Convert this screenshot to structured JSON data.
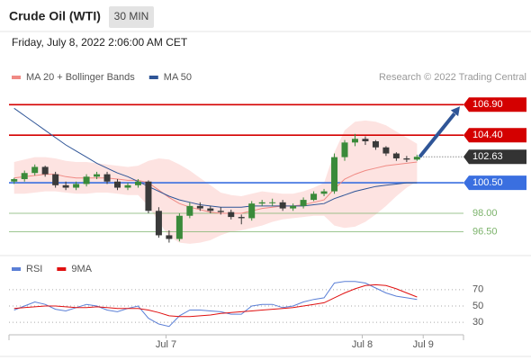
{
  "header": {
    "title": "Crude Oil (WTI)",
    "timeframe": "30 MIN",
    "date": "Friday, July 8, 2022 2:06:00 AM CET",
    "credit": "Research © 2022 Trading Central"
  },
  "chart_data": [
    {
      "type": "candlestick",
      "up_color": "#3a8a3a",
      "down_color": "#3a3a3a",
      "xlim": [
        -0.5,
        43.5
      ],
      "ylim": [
        95.2,
        108.1
      ],
      "open": [
        100.6,
        100.8,
        101.3,
        101.8,
        101.2,
        100.3,
        100.1,
        100.4,
        101.0,
        101.2,
        100.6,
        100.1,
        100.3,
        100.6,
        98.2,
        96.2,
        95.9,
        97.8,
        98.6,
        98.4,
        98.2,
        98.1,
        97.7,
        97.6,
        98.8,
        98.9,
        98.9,
        98.4,
        98.6,
        99.1,
        99.6,
        99.8,
        102.6,
        103.8,
        104.1,
        103.9,
        103.4,
        102.9,
        102.5,
        102.4
      ],
      "high": [
        100.9,
        101.5,
        102.0,
        101.9,
        101.4,
        100.6,
        100.6,
        101.2,
        101.4,
        101.4,
        100.8,
        100.5,
        100.8,
        100.7,
        98.5,
        96.6,
        98.0,
        98.9,
        98.9,
        98.6,
        98.5,
        98.3,
        97.9,
        99.0,
        99.1,
        99.2,
        99.1,
        98.8,
        99.3,
        99.8,
        100.0,
        102.9,
        104.0,
        104.5,
        104.3,
        104.0,
        103.5,
        103.0,
        102.7,
        102.8
      ],
      "low": [
        100.4,
        100.6,
        101.1,
        101.0,
        100.1,
        99.9,
        99.9,
        100.2,
        100.8,
        100.4,
        99.9,
        99.9,
        100.1,
        98.0,
        96.0,
        95.6,
        95.7,
        97.6,
        98.2,
        98.0,
        97.9,
        97.5,
        97.1,
        97.4,
        98.6,
        98.6,
        98.2,
        98.2,
        98.4,
        99.0,
        99.4,
        99.6,
        102.3,
        103.5,
        103.6,
        103.2,
        102.7,
        102.3,
        102.2,
        102.3
      ],
      "close": [
        100.8,
        101.3,
        101.8,
        101.2,
        100.3,
        100.1,
        100.4,
        101.0,
        101.2,
        100.6,
        100.1,
        100.3,
        100.6,
        98.2,
        96.2,
        95.9,
        97.8,
        98.6,
        98.4,
        98.2,
        98.1,
        97.7,
        97.6,
        98.8,
        98.9,
        98.9,
        98.4,
        98.6,
        99.1,
        99.6,
        99.8,
        102.6,
        103.8,
        104.1,
        103.9,
        103.4,
        102.9,
        102.5,
        102.4,
        102.63
      ],
      "bands": {
        "name": "MA 20 + Bollinger Bands",
        "color": "#f08a84",
        "fill": "#fde3e1",
        "upper": [
          102.2,
          102.4,
          102.6,
          102.6,
          102.5,
          102.3,
          102.2,
          102.2,
          102.1,
          102.0,
          101.9,
          101.8,
          101.9,
          102.3,
          102.5,
          102.4,
          102.0,
          101.5,
          100.9,
          100.3,
          99.7,
          99.5,
          99.4,
          99.6,
          99.8,
          99.7,
          99.6,
          99.6,
          99.8,
          100.1,
          100.5,
          103.0,
          104.8,
          105.5,
          105.6,
          105.5,
          105.2,
          104.7,
          104.2,
          103.7
        ],
        "middle": [
          100.9,
          101.0,
          101.1,
          101.2,
          101.2,
          101.0,
          100.9,
          100.9,
          100.9,
          100.9,
          100.8,
          100.7,
          100.7,
          100.5,
          99.9,
          99.3,
          98.8,
          98.5,
          98.3,
          98.1,
          98.0,
          98.0,
          98.0,
          98.2,
          98.4,
          98.5,
          98.6,
          98.6,
          98.7,
          98.9,
          99.1,
          100.0,
          100.8,
          101.2,
          101.5,
          101.7,
          101.9,
          102.0,
          102.1,
          102.2
        ],
        "lower": [
          99.6,
          99.6,
          99.7,
          99.8,
          99.8,
          99.7,
          99.6,
          99.6,
          99.7,
          99.7,
          99.6,
          99.5,
          99.5,
          98.6,
          97.3,
          96.1,
          95.6,
          95.5,
          95.6,
          95.8,
          96.2,
          96.5,
          96.6,
          96.8,
          97.0,
          97.3,
          97.5,
          97.6,
          97.7,
          97.8,
          97.8,
          97.0,
          96.8,
          96.9,
          97.3,
          97.9,
          98.6,
          99.4,
          100.1,
          100.6
        ]
      },
      "series": [
        {
          "name": "MA 50",
          "color": "#2f5597",
          "values": [
            106.6,
            106.0,
            105.4,
            104.8,
            104.2,
            103.6,
            103.1,
            102.6,
            102.1,
            101.7,
            101.3,
            101.0,
            100.6,
            100.2,
            99.8,
            99.4,
            99.1,
            98.9,
            98.7,
            98.6,
            98.5,
            98.5,
            98.5,
            98.6,
            98.6,
            98.6,
            98.6,
            98.6,
            98.6,
            98.7,
            98.8,
            99.2,
            99.5,
            99.8,
            100.0,
            100.2,
            100.3,
            100.4,
            100.5,
            100.5
          ]
        }
      ],
      "levels": [
        {
          "value": 106.9,
          "label": "106.90",
          "color": "#d40000",
          "kind": "box"
        },
        {
          "value": 104.4,
          "label": "104.40",
          "color": "#d40000",
          "kind": "box"
        },
        {
          "value": 102.63,
          "color": "#333333",
          "kind": "current"
        },
        {
          "value": 100.5,
          "label": "100.50",
          "color": "#3a6fe0",
          "kind": "box"
        },
        {
          "value": 98,
          "label": "98.00",
          "color": "#7cb36b",
          "kind": "text"
        },
        {
          "value": 96.5,
          "label": "96.50",
          "color": "#7cb36b",
          "kind": "text"
        }
      ]
    },
    {
      "type": "line",
      "xlim": [
        -0.5,
        43.5
      ],
      "ylim": [
        17,
        83
      ],
      "yticks": [
        70,
        50,
        30
      ],
      "xticks": [
        {
          "value": 14.7,
          "label": "Jul 7"
        },
        {
          "value": 33.7,
          "label": "Jul 8"
        },
        {
          "value": 39.6,
          "label": "Jul 9"
        }
      ],
      "series": [
        {
          "name": "RSI",
          "color": "#5b7fd6",
          "values": [
            45,
            50,
            55,
            52,
            46,
            44,
            48,
            52,
            50,
            45,
            43,
            47,
            50,
            35,
            28,
            25,
            38,
            45,
            45,
            44,
            43,
            40,
            40,
            50,
            52,
            52,
            48,
            50,
            55,
            58,
            60,
            78,
            80,
            80,
            78,
            72,
            66,
            62,
            60,
            58
          ]
        },
        {
          "name": "9MA",
          "color": "#e01010",
          "values": [
            47,
            48,
            49,
            50,
            50,
            49,
            48,
            48,
            49,
            48,
            47,
            47,
            47,
            45,
            42,
            38,
            37,
            37,
            38,
            39,
            41,
            42,
            43,
            44,
            45,
            46,
            47,
            48,
            50,
            52,
            54,
            60,
            66,
            71,
            75,
            76,
            75,
            71,
            66,
            61
          ]
        }
      ]
    }
  ]
}
